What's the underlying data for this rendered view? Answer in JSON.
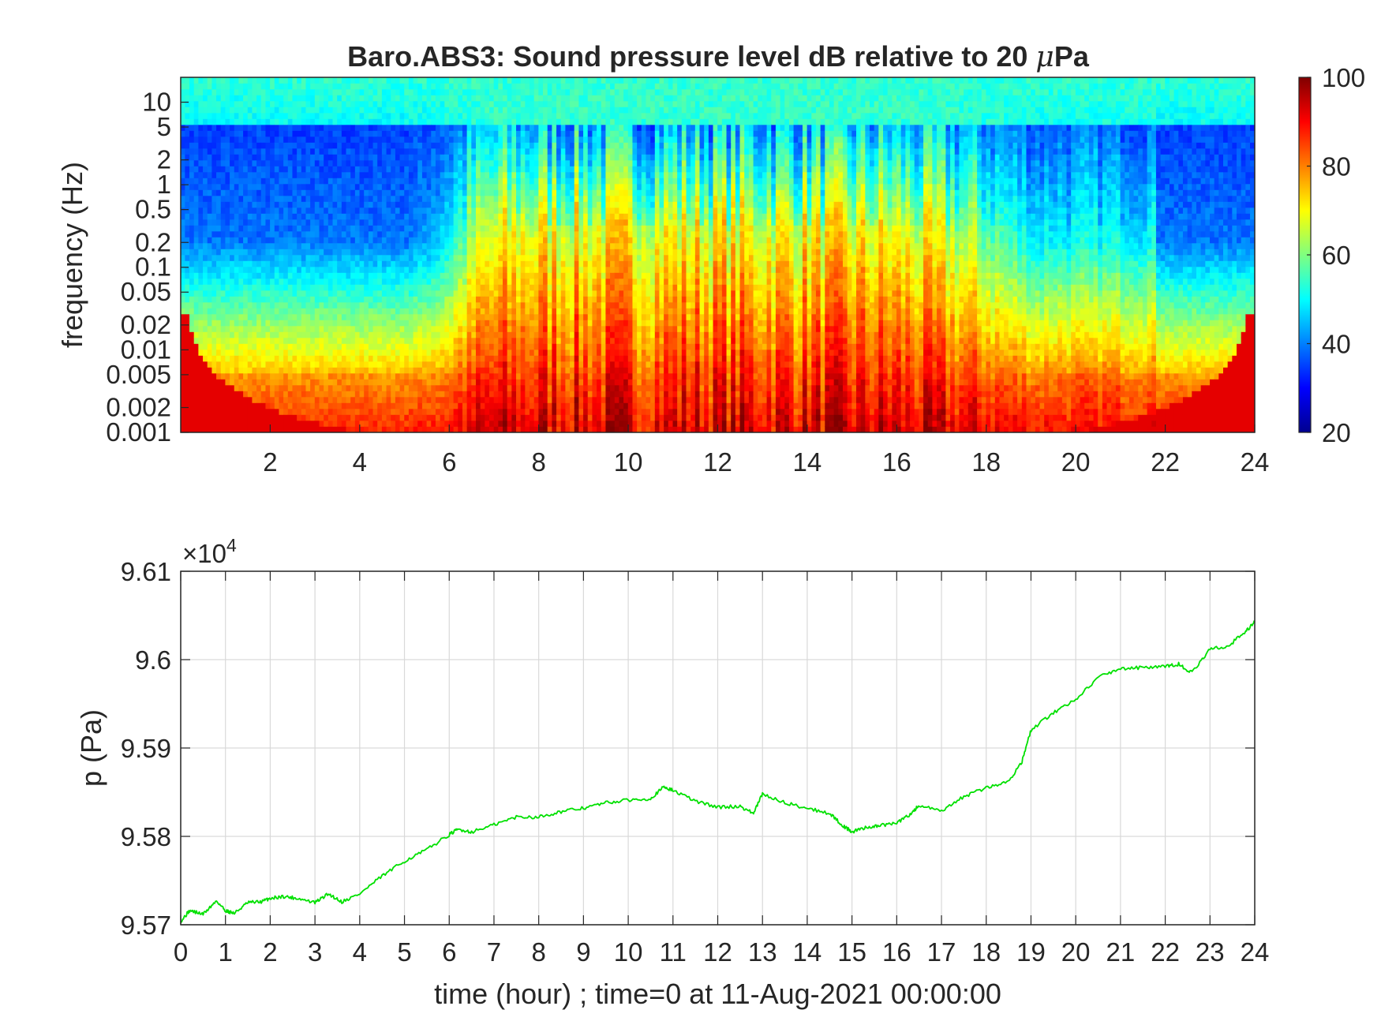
{
  "chart_data": [
    {
      "type": "heatmap",
      "title_prefix": "Baro.ABS3: Sound pressure level dB relative to 20 ",
      "title_mu": "μ",
      "title_suffix": "Pa",
      "ylabel": "frequency (Hz)",
      "xlabel": "",
      "x_range": [
        0,
        24
      ],
      "x_ticks": [
        2,
        4,
        6,
        8,
        10,
        12,
        14,
        16,
        18,
        20,
        22,
        24
      ],
      "y_scale": "log",
      "y_range": [
        0.001,
        20
      ],
      "y_ticks": [
        {
          "value": 0.001,
          "label": "0.001"
        },
        {
          "value": 0.002,
          "label": "0.002"
        },
        {
          "value": 0.005,
          "label": "0.005"
        },
        {
          "value": 0.01,
          "label": "0.01"
        },
        {
          "value": 0.02,
          "label": "0.02"
        },
        {
          "value": 0.05,
          "label": "0.05"
        },
        {
          "value": 0.1,
          "label": "0.1"
        },
        {
          "value": 0.2,
          "label": "0.2"
        },
        {
          "value": 0.5,
          "label": "0.5"
        },
        {
          "value": 1,
          "label": "1"
        },
        {
          "value": 2,
          "label": "2"
        },
        {
          "value": 5,
          "label": "5"
        },
        {
          "value": 10,
          "label": "10"
        }
      ],
      "colormap": "jet",
      "colorbar_range": [
        20,
        100
      ],
      "colorbar_ticks": [
        20,
        40,
        60,
        80,
        100
      ],
      "colorbar_placement": "right",
      "active_period_hours": [
        6.2,
        18.5
      ],
      "approx_levels_db": {
        "above_5Hz": 50,
        "night_0.2_to_2Hz": 35,
        "day_0.05_to_1Hz": 70,
        "below_0.005Hz": 85
      }
    },
    {
      "type": "line",
      "xlabel": "time (hour) ; time=0 at 11-Aug-2021 00:00:00",
      "ylabel": "p (Pa)",
      "y_multiplier_base": "×10",
      "y_multiplier_exp": "4",
      "x_range": [
        0,
        24
      ],
      "x_ticks": [
        0,
        1,
        2,
        3,
        4,
        5,
        6,
        7,
        8,
        9,
        10,
        11,
        12,
        13,
        14,
        15,
        16,
        17,
        18,
        19,
        20,
        21,
        22,
        23,
        24
      ],
      "y_range": [
        9.57,
        9.61
      ],
      "y_ticks": [
        {
          "value": 9.57,
          "label": "9.57"
        },
        {
          "value": 9.58,
          "label": "9.58"
        },
        {
          "value": 9.59,
          "label": "9.59"
        },
        {
          "value": 9.6,
          "label": "9.6"
        },
        {
          "value": 9.61,
          "label": "9.61"
        }
      ],
      "grid": true,
      "series": [
        {
          "color": "#00e000",
          "x": [
            0,
            0.2,
            0.5,
            0.8,
            1.0,
            1.2,
            1.5,
            1.8,
            2.0,
            2.3,
            2.6,
            3.0,
            3.3,
            3.6,
            4.0,
            4.5,
            5.0,
            5.5,
            6.0,
            6.2,
            6.5,
            7.0,
            7.5,
            8.0,
            8.5,
            9.0,
            9.5,
            10.0,
            10.5,
            10.8,
            11.0,
            11.5,
            12.0,
            12.5,
            12.8,
            13.0,
            13.5,
            14.0,
            14.5,
            14.8,
            15.0,
            15.3,
            15.6,
            16.0,
            16.3,
            16.5,
            17.0,
            17.5,
            18.0,
            18.5,
            18.8,
            19.0,
            19.5,
            20.0,
            20.5,
            21.0,
            21.5,
            22.0,
            22.3,
            22.6,
            23.0,
            23.4,
            23.8,
            24.0
          ],
          "y": [
            9.5704,
            9.5716,
            9.5712,
            9.5727,
            9.5716,
            9.5713,
            9.5725,
            9.5726,
            9.573,
            9.5732,
            9.573,
            9.5725,
            9.5735,
            9.5726,
            9.5735,
            9.5755,
            9.5772,
            9.5785,
            9.5802,
            9.5808,
            9.5805,
            9.5813,
            9.5822,
            9.5822,
            9.5828,
            9.5832,
            9.5838,
            9.5841,
            9.5843,
            9.5856,
            9.5852,
            9.584,
            9.5833,
            9.5834,
            9.5826,
            9.5848,
            9.5838,
            9.5832,
            9.5826,
            9.5812,
            9.5805,
            9.581,
            9.5812,
            9.5815,
            9.5825,
            9.5835,
            9.5828,
            9.5845,
            9.5855,
            9.5862,
            9.5885,
            9.592,
            9.594,
            9.5955,
            9.598,
            9.599,
            9.5991,
            9.5992,
            9.5995,
            9.5985,
            9.6012,
            9.6015,
            9.6032,
            9.6043
          ]
        }
      ]
    }
  ]
}
